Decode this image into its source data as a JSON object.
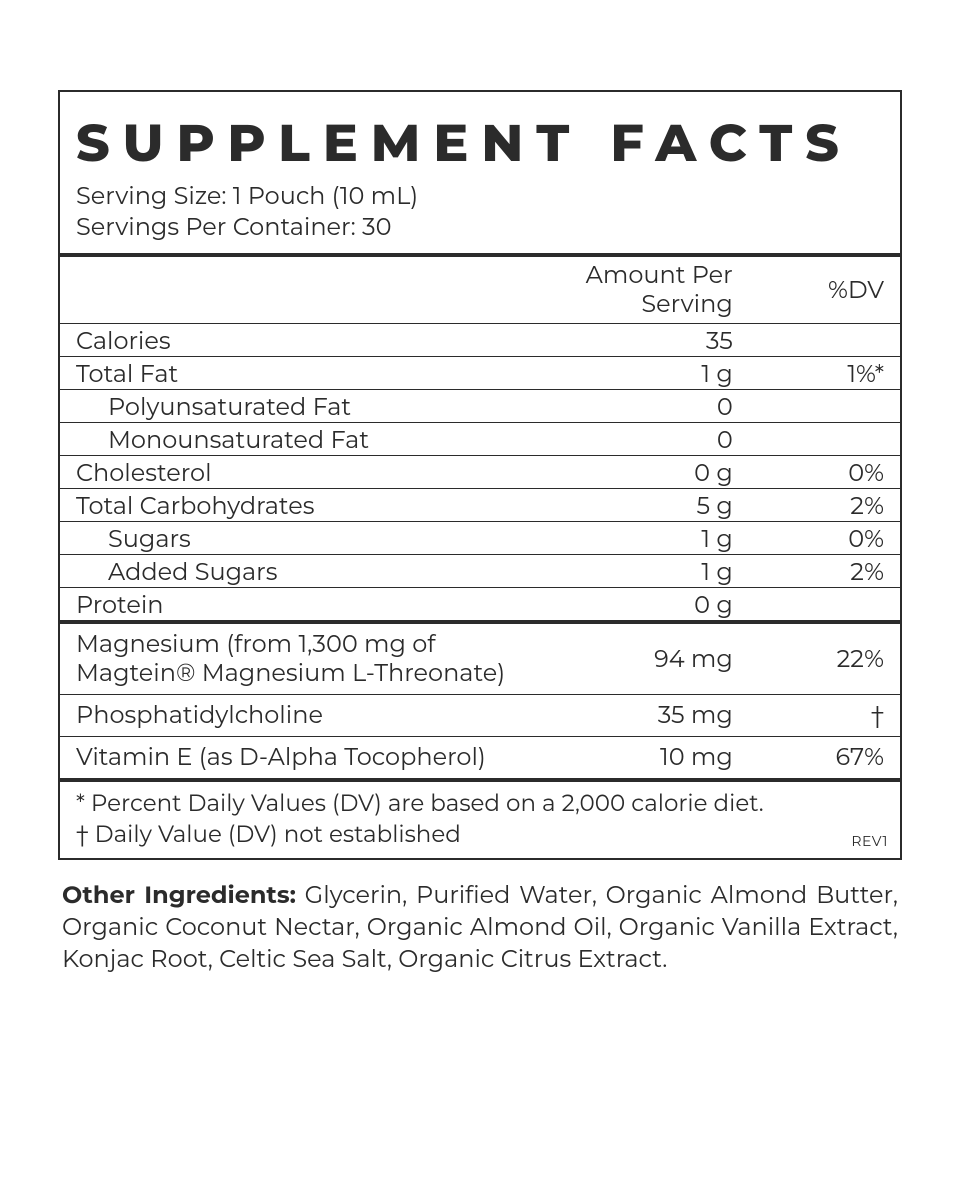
{
  "title": "SUPPLEMENT FACTS",
  "serving": {
    "size": "Serving Size: 1 Pouch (10 mL)",
    "per_container": "Servings Per Container: 30"
  },
  "headers": {
    "amt": "Amount Per Serving",
    "dv": "%DV"
  },
  "nutrition": [
    {
      "label": "Calories",
      "amt": "35",
      "dv": "",
      "indent": false
    },
    {
      "label": "Total Fat",
      "amt": "1 g",
      "dv": "1%*",
      "indent": false
    },
    {
      "label": "Polyunsaturated Fat",
      "amt": "0",
      "dv": "",
      "indent": true
    },
    {
      "label": "Monounsaturated Fat",
      "amt": "0",
      "dv": "",
      "indent": true
    },
    {
      "label": "Cholesterol",
      "amt": "0 g",
      "dv": "0%",
      "indent": false
    },
    {
      "label": "Total Carbohydrates",
      "amt": "5 g",
      "dv": "2%",
      "indent": false
    },
    {
      "label": "Sugars",
      "amt": "1 g",
      "dv": "0%",
      "indent": true
    },
    {
      "label": "Added Sugars",
      "amt": "1 g",
      "dv": "2%",
      "indent": true
    },
    {
      "label": "Protein",
      "amt": "0 g",
      "dv": "",
      "indent": false
    }
  ],
  "supplements": [
    {
      "label": "Magnesium (from 1,300 mg of Magtein® Magnesium L-Threonate)",
      "amt": "94 mg",
      "dv": "22%"
    },
    {
      "label": "Phosphatidylcholine",
      "amt": "35 mg",
      "dv": "†"
    },
    {
      "label": "Vitamin E (as D-Alpha Tocopherol)",
      "amt": "10 mg",
      "dv": "67%"
    }
  ],
  "notes": {
    "line1": "* Percent Daily Values (DV) are based on a 2,000 calorie diet.",
    "line2": "† Daily Value (DV) not established",
    "rev": "REV1"
  },
  "other_label": "Other Ingredients:",
  "other_text": " Glycerin, Purified Water, Organic Almond Butter, Organic Coconut Nectar, Organic Almond Oil, Organic Vanilla Extract, Konjac Root, Celtic Sea Salt, Organic Citrus Extract."
}
